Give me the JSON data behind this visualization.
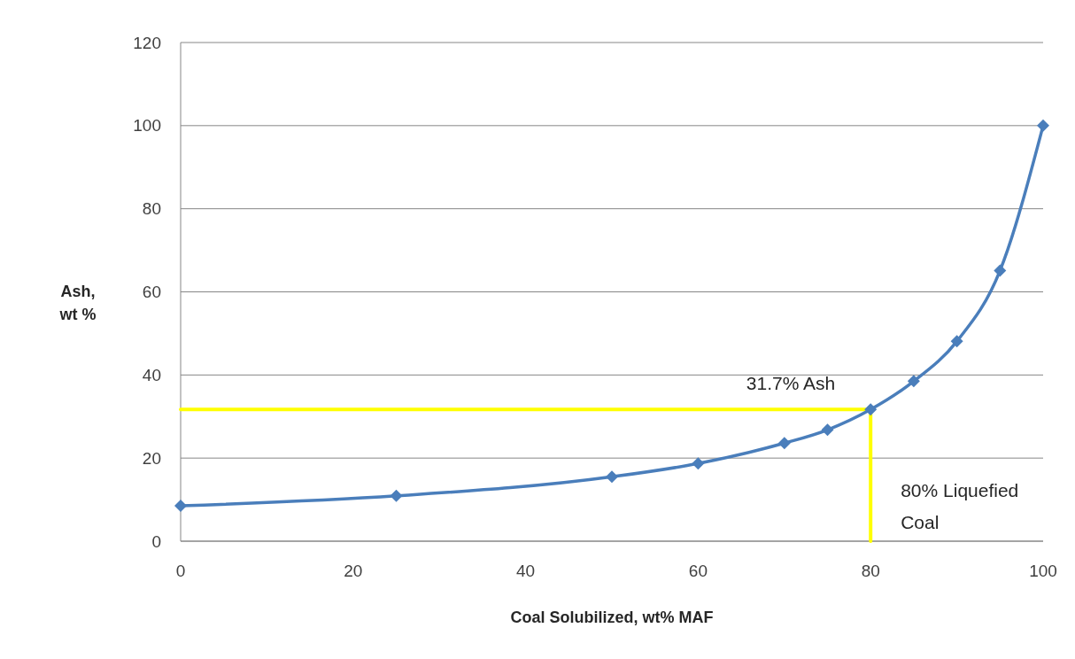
{
  "chart_data": {
    "type": "line",
    "xlabel": "Coal Solubilized, wt% MAF",
    "ylabel": "Ash, wt %",
    "xlim": [
      0,
      100
    ],
    "xticks": [
      0,
      20,
      40,
      60,
      80,
      100
    ],
    "ylim": [
      0,
      120
    ],
    "yticks": [
      0,
      20,
      40,
      60,
      80,
      100,
      120
    ],
    "grid": "y",
    "marker": "diamond",
    "series": [
      {
        "color": "#4a7ebb",
        "x": [
          0,
          25,
          50,
          60,
          70,
          75,
          80,
          85,
          90,
          95,
          100
        ],
        "values": [
          8.5,
          10.9,
          15.5,
          18.7,
          23.6,
          26.8,
          31.7,
          38.5,
          48.1,
          65.1,
          100
        ]
      },
      {
        "color": "#ffff00",
        "marker": "none",
        "x": [
          0,
          80,
          80
        ],
        "values": [
          31.7,
          31.7,
          0
        ]
      }
    ],
    "annotations": [
      {
        "text": "31.7% Ash",
        "x": 80,
        "y": 31.7
      },
      {
        "text": "80% Liquefied Coal",
        "x": 80,
        "y": 0
      }
    ]
  }
}
